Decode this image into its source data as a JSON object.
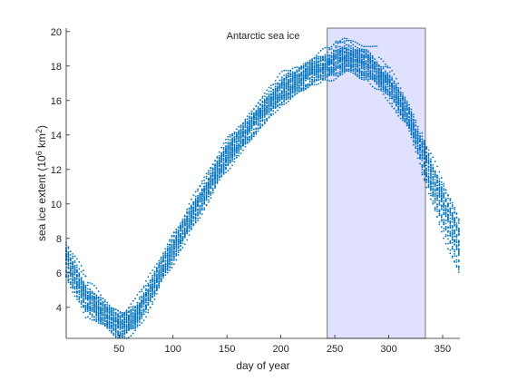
{
  "chart_data": {
    "type": "scatter",
    "title": "",
    "annotation": "Antarctic sea ice",
    "xlabel": "day of year",
    "ylabel": {
      "prefix": "sea ice extent (10",
      "superscript1": "6",
      "middle": " km",
      "superscript2": "2",
      "suffix": ")"
    },
    "xlim": [
      1,
      366
    ],
    "ylim": [
      2.2,
      20.2
    ],
    "xticks": [
      50,
      100,
      150,
      200,
      250,
      300,
      350
    ],
    "yticks": [
      4,
      6,
      8,
      10,
      12,
      14,
      16,
      18,
      20
    ],
    "grid": false,
    "legend": false,
    "highlight": {
      "x_start": 243,
      "x_end": 334,
      "color": "#e0e0ff",
      "edge_color": "#555555"
    },
    "series_color": "#0072bd",
    "series_count": 38,
    "marker": "dot",
    "typical_seasonal_cycle": [
      {
        "day": 1,
        "extent": 6.8
      },
      {
        "day": 20,
        "extent": 4.5
      },
      {
        "day": 40,
        "extent": 3.4
      },
      {
        "day": 52,
        "extent": 3.0
      },
      {
        "day": 65,
        "extent": 3.5
      },
      {
        "day": 80,
        "extent": 5.0
      },
      {
        "day": 100,
        "extent": 7.4
      },
      {
        "day": 120,
        "extent": 9.7
      },
      {
        "day": 150,
        "extent": 12.8
      },
      {
        "day": 180,
        "extent": 15.2
      },
      {
        "day": 200,
        "extent": 16.5
      },
      {
        "day": 230,
        "extent": 17.8
      },
      {
        "day": 260,
        "extent": 18.4
      },
      {
        "day": 280,
        "extent": 18.1
      },
      {
        "day": 300,
        "extent": 17.0
      },
      {
        "day": 320,
        "extent": 14.8
      },
      {
        "day": 340,
        "extent": 11.5
      },
      {
        "day": 366,
        "extent": 7.5
      }
    ]
  }
}
